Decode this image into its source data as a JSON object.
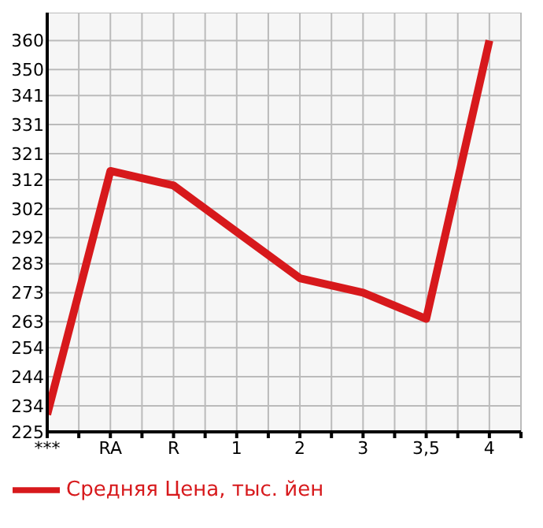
{
  "chart_data": {
    "type": "line",
    "categories": [
      "***",
      "RA",
      "R",
      "1",
      "2",
      "3",
      "3,5",
      "4"
    ],
    "series": [
      {
        "name": "Средняя Цена, тыс. йен",
        "color": "#d7191c",
        "values": [
          231,
          315,
          310,
          294,
          278,
          273,
          264,
          360
        ]
      }
    ],
    "ylim": [
      225,
      369.64
    ],
    "yticks": [
      225,
      234,
      244,
      254,
      263,
      273,
      283,
      292,
      302,
      312,
      321,
      331,
      341,
      350,
      360
    ],
    "grid": true,
    "legend": "bottom",
    "marker": "none",
    "line_style": "solid"
  }
}
